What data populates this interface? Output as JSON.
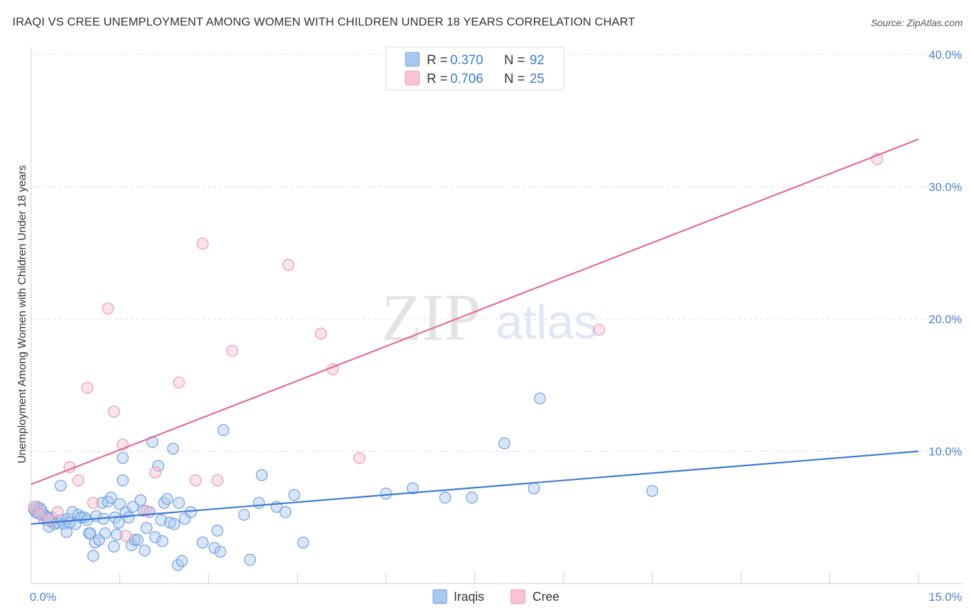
{
  "title": "IRAQI VS CREE UNEMPLOYMENT AMONG WOMEN WITH CHILDREN UNDER 18 YEARS CORRELATION CHART",
  "source": "Source: ZipAtlas.com",
  "watermark": {
    "zip": "ZIP",
    "atlas": "atlas"
  },
  "legend_top": [
    {
      "r_label": "R = ",
      "r_value": "0.370",
      "n_label": "N = ",
      "n_value": "92",
      "color": "#a9c8f0",
      "stroke": "#6f9fe0"
    },
    {
      "r_label": "R = ",
      "r_value": "0.706",
      "n_label": "N = ",
      "n_value": "25",
      "color": "#f9c3d3",
      "stroke": "#ee94b0"
    }
  ],
  "legend_bottom": [
    {
      "label": "Iraqis",
      "color": "#a9c8f0",
      "stroke": "#6f9fe0"
    },
    {
      "label": "Cree",
      "color": "#f9c3d3",
      "stroke": "#ee94b0"
    }
  ],
  "chart_data": {
    "type": "scatter",
    "title": "IRAQI VS CREE UNEMPLOYMENT AMONG WOMEN WITH CHILDREN UNDER 18 YEARS CORRELATION CHART",
    "xlabel": "",
    "ylabel": "Unemployment Among Women with Children Under 18 years",
    "xlim": [
      0,
      15
    ],
    "ylim": [
      0,
      40
    ],
    "x_tick_labels": [
      {
        "value": 0,
        "label": "0.0%"
      },
      {
        "value": 15,
        "label": "15.0%"
      }
    ],
    "y_tick_labels": [
      {
        "value": 10,
        "label": "10.0%"
      },
      {
        "value": 20,
        "label": "20.0%"
      },
      {
        "value": 30,
        "label": "30.0%"
      },
      {
        "value": 40,
        "label": "40.0%"
      }
    ],
    "series": [
      {
        "name": "Iraqis",
        "color": "#3b78d8",
        "r": 0.37,
        "n": 92,
        "trend": {
          "x": [
            0,
            15
          ],
          "y": [
            4.5,
            10.0
          ]
        },
        "points": [
          [
            0.05,
            5.6
          ],
          [
            0.08,
            5.4
          ],
          [
            0.1,
            5.8
          ],
          [
            0.12,
            5.3
          ],
          [
            0.15,
            5.7
          ],
          [
            0.2,
            5.2
          ],
          [
            0.22,
            4.9
          ],
          [
            0.25,
            5.1
          ],
          [
            0.3,
            4.3
          ],
          [
            0.33,
            4.7
          ],
          [
            0.35,
            5.0
          ],
          [
            0.4,
            4.5
          ],
          [
            0.45,
            4.6
          ],
          [
            0.5,
            7.4
          ],
          [
            0.52,
            4.8
          ],
          [
            0.55,
            4.5
          ],
          [
            0.6,
            3.9
          ],
          [
            0.62,
            4.9
          ],
          [
            0.7,
            5.4
          ],
          [
            0.75,
            4.5
          ],
          [
            0.8,
            5.2
          ],
          [
            0.85,
            5.0
          ],
          [
            0.9,
            5.0
          ],
          [
            0.95,
            4.8
          ],
          [
            0.98,
            3.8
          ],
          [
            1.0,
            3.8
          ],
          [
            1.05,
            2.1
          ],
          [
            1.08,
            3.1
          ],
          [
            1.1,
            5.1
          ],
          [
            1.15,
            3.3
          ],
          [
            1.2,
            6.1
          ],
          [
            1.22,
            4.9
          ],
          [
            1.25,
            3.8
          ],
          [
            1.3,
            6.2
          ],
          [
            1.35,
            6.5
          ],
          [
            1.4,
            2.8
          ],
          [
            1.42,
            5.0
          ],
          [
            1.45,
            3.7
          ],
          [
            1.48,
            4.6
          ],
          [
            1.5,
            6.0
          ],
          [
            1.55,
            9.5
          ],
          [
            1.55,
            7.8
          ],
          [
            1.6,
            5.4
          ],
          [
            1.65,
            5.0
          ],
          [
            1.7,
            2.9
          ],
          [
            1.72,
            5.8
          ],
          [
            1.75,
            3.3
          ],
          [
            1.8,
            3.3
          ],
          [
            1.85,
            6.3
          ],
          [
            1.9,
            5.5
          ],
          [
            1.92,
            2.5
          ],
          [
            1.95,
            4.2
          ],
          [
            2.0,
            5.4
          ],
          [
            2.05,
            10.7
          ],
          [
            2.1,
            3.5
          ],
          [
            2.15,
            8.9
          ],
          [
            2.2,
            4.8
          ],
          [
            2.22,
            3.2
          ],
          [
            2.25,
            6.1
          ],
          [
            2.3,
            6.4
          ],
          [
            2.35,
            4.6
          ],
          [
            2.4,
            10.2
          ],
          [
            2.42,
            4.5
          ],
          [
            2.48,
            1.4
          ],
          [
            2.5,
            6.1
          ],
          [
            2.55,
            1.7
          ],
          [
            2.6,
            4.9
          ],
          [
            2.7,
            5.4
          ],
          [
            2.9,
            3.1
          ],
          [
            3.1,
            2.7
          ],
          [
            3.15,
            4.0
          ],
          [
            3.2,
            2.4
          ],
          [
            3.25,
            11.6
          ],
          [
            3.6,
            5.2
          ],
          [
            3.7,
            1.8
          ],
          [
            3.85,
            6.1
          ],
          [
            3.9,
            8.2
          ],
          [
            4.15,
            5.8
          ],
          [
            4.3,
            5.4
          ],
          [
            4.45,
            6.7
          ],
          [
            4.6,
            3.1
          ],
          [
            6.0,
            6.8
          ],
          [
            6.45,
            7.2
          ],
          [
            7.0,
            6.5
          ],
          [
            7.45,
            6.5
          ],
          [
            8.0,
            10.6
          ],
          [
            8.5,
            7.2
          ],
          [
            8.6,
            14.0
          ],
          [
            10.5,
            7.0
          ],
          [
            0.18,
            5.5
          ],
          [
            0.28,
            5.0
          ],
          [
            0.65,
            4.6
          ]
        ]
      },
      {
        "name": "Cree",
        "color": "#e36b94",
        "r": 0.706,
        "n": 25,
        "trend": {
          "x": [
            0,
            15
          ],
          "y": [
            7.5,
            33.6
          ]
        },
        "points": [
          [
            0.05,
            5.8
          ],
          [
            0.15,
            5.3
          ],
          [
            0.3,
            4.8
          ],
          [
            0.45,
            5.4
          ],
          [
            0.65,
            8.8
          ],
          [
            0.8,
            7.8
          ],
          [
            0.95,
            14.8
          ],
          [
            1.05,
            6.1
          ],
          [
            1.3,
            20.8
          ],
          [
            1.4,
            13.0
          ],
          [
            1.55,
            10.5
          ],
          [
            1.6,
            3.6
          ],
          [
            1.95,
            5.5
          ],
          [
            2.1,
            8.4
          ],
          [
            2.5,
            15.2
          ],
          [
            2.78,
            7.8
          ],
          [
            2.9,
            25.7
          ],
          [
            3.15,
            7.8
          ],
          [
            3.4,
            17.6
          ],
          [
            4.35,
            24.1
          ],
          [
            4.9,
            18.9
          ],
          [
            5.1,
            16.2
          ],
          [
            5.55,
            9.5
          ],
          [
            9.6,
            19.2
          ],
          [
            14.3,
            32.1
          ]
        ]
      }
    ]
  }
}
